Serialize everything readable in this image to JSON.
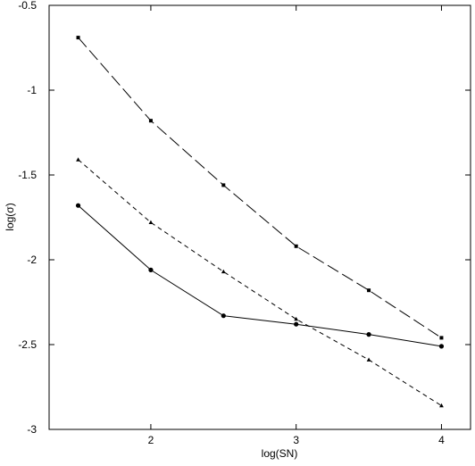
{
  "chart_data": {
    "type": "line",
    "xlabel": "log(SN)",
    "ylabel": "log(σ)",
    "xlim": [
      1.3,
      4.2
    ],
    "ylim": [
      -3,
      -0.5
    ],
    "xticks": [
      2,
      3,
      4
    ],
    "xtick_labels": [
      "2",
      "3",
      "4"
    ],
    "yticks": [
      -0.5,
      -1,
      -1.5,
      -2,
      -2.5,
      -3
    ],
    "ytick_labels": [
      "-0.5",
      "-1",
      "-1.5",
      "-2",
      "-2.5",
      "-3"
    ],
    "grid": false,
    "legend": "none",
    "series": [
      {
        "line_style": "long-dash",
        "marker": "square",
        "color": "#000000",
        "x": [
          1.5,
          2.0,
          2.5,
          3.0,
          3.5,
          4.0
        ],
        "y": [
          -0.69,
          -1.18,
          -1.56,
          -1.92,
          -2.18,
          -2.46
        ]
      },
      {
        "line_style": "short-dash",
        "marker": "triangle",
        "color": "#000000",
        "x": [
          1.5,
          2.0,
          2.5,
          3.0,
          3.5,
          4.0
        ],
        "y": [
          -1.41,
          -1.78,
          -2.07,
          -2.35,
          -2.59,
          -2.86
        ]
      },
      {
        "line_style": "solid",
        "marker": "circle",
        "color": "#000000",
        "x": [
          1.5,
          2.0,
          2.5,
          3.0,
          3.5,
          4.0
        ],
        "y": [
          -1.68,
          -2.06,
          -2.33,
          -2.38,
          -2.44,
          -2.51
        ]
      }
    ]
  }
}
